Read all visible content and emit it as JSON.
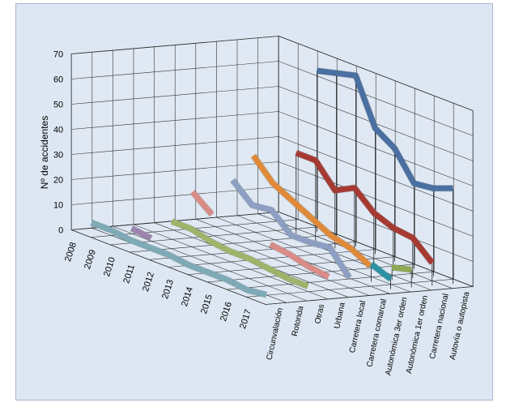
{
  "chart_data": {
    "type": "line",
    "subtype": "3d-ribbon",
    "ylabel": "Nº de accidentes",
    "ylim": [
      0,
      70
    ],
    "yticks": [
      0,
      10,
      20,
      30,
      40,
      50,
      60,
      70
    ],
    "grid": true,
    "legend": "none",
    "categories": [
      "2008",
      "2009",
      "2010",
      "2011",
      "2012",
      "2013",
      "2014",
      "2015",
      "2016",
      "2017"
    ],
    "series": [
      {
        "name": "Circunvalación",
        "color": "#7eaab6",
        "values": [
          4,
          4,
          3,
          3,
          3,
          2,
          2,
          2,
          1,
          2
        ]
      },
      {
        "name": "Rotonda",
        "color": "#9c85ac",
        "values": [
          null,
          4,
          3,
          null,
          null,
          null,
          null,
          null,
          null,
          null
        ]
      },
      {
        "name": "Otras",
        "color": "#9eb46a",
        "values": [
          null,
          null,
          9,
          9,
          7,
          6,
          6,
          5,
          4,
          4
        ]
      },
      {
        "name": "Urbana",
        "color": "#d98b86",
        "values": [
          null,
          null,
          20,
          14,
          null,
          null,
          11,
          10,
          8,
          7
        ]
      },
      {
        "name": "Carretera local",
        "color": "#8c9fc2",
        "values": [
          null,
          null,
          null,
          27,
          20,
          21,
          14,
          14,
          15,
          6
        ]
      },
      {
        "name": "Carretera comarcal",
        "color": "#e08a39",
        "values": [
          null,
          null,
          null,
          36,
          28,
          24,
          20,
          16,
          14,
          10
        ]
      },
      {
        "name": "Autonómica 3er orden",
        "color": "#2d93a3",
        "values": [
          null,
          null,
          null,
          null,
          null,
          null,
          null,
          null,
          7,
          4
        ]
      },
      {
        "name": "Autonómica 1er orden",
        "color": "#8ea854",
        "values": [
          null,
          null,
          null,
          null,
          null,
          null,
          null,
          null,
          5,
          7
        ]
      },
      {
        "name": "Carretera nacional",
        "color": "#a63a32",
        "values": [
          null,
          null,
          32,
          32,
          23,
          27,
          20,
          17,
          16,
          9
        ]
      },
      {
        "name": "Autovía o autopista",
        "color": "#4a6fa1",
        "values": [
          null,
          null,
          64,
          66,
          68,
          50,
          45,
          34,
          35,
          38
        ]
      }
    ]
  }
}
